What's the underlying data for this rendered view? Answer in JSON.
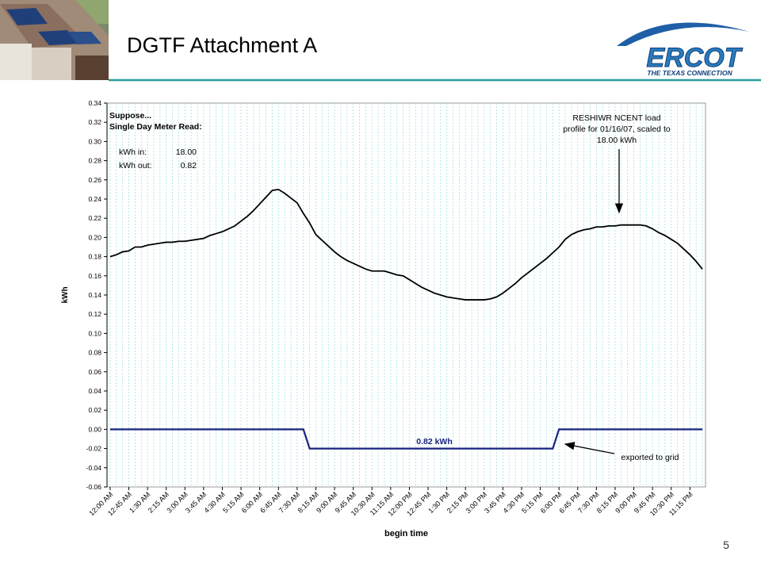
{
  "slide": {
    "title": "DGTF Attachment A",
    "page_number": "5",
    "logo": {
      "name": "ERCOT",
      "tagline": "THE TEXAS CONNECTION"
    }
  },
  "chart_data": {
    "type": "line",
    "xlabel": "begin time",
    "ylabel": "kWh",
    "categories": [
      "12:00 AM",
      null,
      null,
      "12:45 AM",
      null,
      null,
      "1:30 AM",
      null,
      null,
      "2:15 AM",
      null,
      null,
      "3:00 AM",
      null,
      null,
      "3:45 AM",
      null,
      null,
      "4:30 AM",
      null,
      null,
      "5:15 AM",
      null,
      null,
      "6:00 AM",
      null,
      null,
      "6:45 AM",
      null,
      null,
      "7:30 AM",
      null,
      null,
      "8:15 AM",
      null,
      null,
      "9:00 AM",
      null,
      null,
      "9:45 AM",
      null,
      null,
      "10:30 AM",
      null,
      null,
      "11:15 AM",
      null,
      null,
      "12:00 PM",
      null,
      null,
      "12:45 PM",
      null,
      null,
      "1:30 PM",
      null,
      null,
      "2:15 PM",
      null,
      null,
      "3:00 PM",
      null,
      null,
      "3:45 PM",
      null,
      null,
      "4:30 PM",
      null,
      null,
      "5:15 PM",
      null,
      null,
      "6:00 PM",
      null,
      null,
      "6:45 PM",
      null,
      null,
      "7:30 PM",
      null,
      null,
      "8:15 PM",
      null,
      null,
      "9:00 PM",
      null,
      null,
      "9:45 PM",
      null,
      null,
      "10:30 PM",
      null,
      null,
      "11:15 PM",
      null,
      null
    ],
    "series": [
      {
        "color": "#000000",
        "values": [
          0.18,
          0.182,
          0.185,
          0.186,
          0.19,
          0.19,
          0.192,
          0.193,
          0.194,
          0.195,
          0.195,
          0.196,
          0.196,
          0.197,
          0.198,
          0.199,
          0.202,
          0.204,
          0.206,
          0.209,
          0.212,
          0.217,
          0.222,
          0.228,
          0.235,
          0.242,
          0.249,
          0.25,
          0.246,
          0.241,
          0.236,
          0.225,
          0.215,
          0.203,
          0.197,
          0.191,
          0.185,
          0.18,
          0.176,
          0.173,
          0.17,
          0.167,
          0.165,
          0.165,
          0.165,
          0.163,
          0.161,
          0.16,
          0.156,
          0.152,
          0.148,
          0.145,
          0.142,
          0.14,
          0.138,
          0.137,
          0.136,
          0.135,
          0.135,
          0.135,
          0.135,
          0.136,
          0.138,
          0.142,
          0.147,
          0.152,
          0.158,
          0.163,
          0.168,
          0.173,
          0.178,
          0.184,
          0.19,
          0.198,
          0.203,
          0.206,
          0.208,
          0.209,
          0.211,
          0.211,
          0.212,
          0.212,
          0.213,
          0.213,
          0.213,
          0.213,
          0.212,
          0.209,
          0.205,
          0.202,
          0.198,
          0.194,
          0.188,
          0.182,
          0.175,
          0.167
        ]
      },
      {
        "color": "#1a237e",
        "values": [
          0,
          0,
          0,
          0,
          0,
          0,
          0,
          0,
          0,
          0,
          0,
          0,
          0,
          0,
          0,
          0,
          0,
          0,
          0,
          0,
          0,
          0,
          0,
          0,
          0,
          0,
          0,
          0,
          0,
          0,
          0,
          0,
          -0.02,
          -0.02,
          -0.02,
          -0.02,
          -0.02,
          -0.02,
          -0.02,
          -0.02,
          -0.02,
          -0.02,
          -0.02,
          -0.02,
          -0.02,
          -0.02,
          -0.02,
          -0.02,
          -0.02,
          -0.02,
          -0.02,
          -0.02,
          -0.02,
          -0.02,
          -0.02,
          -0.02,
          -0.02,
          -0.02,
          -0.02,
          -0.02,
          -0.02,
          -0.02,
          -0.02,
          -0.02,
          -0.02,
          -0.02,
          -0.02,
          -0.02,
          -0.02,
          -0.02,
          -0.02,
          -0.02,
          0,
          0,
          0,
          0,
          0,
          0,
          0,
          0,
          0,
          0,
          0,
          0,
          0,
          0,
          0,
          0,
          0,
          0,
          0,
          0,
          0,
          0,
          0,
          0
        ]
      }
    ],
    "ylim": [
      -0.06,
      0.34
    ],
    "yticks": [
      {
        "value": 0.34,
        "label": "0.34"
      },
      {
        "value": 0.32,
        "label": "0.32"
      },
      {
        "value": 0.3,
        "label": "0.30"
      },
      {
        "value": 0.28,
        "label": "0.28"
      },
      {
        "value": 0.26,
        "label": "0.26"
      },
      {
        "value": 0.24,
        "label": "0.24"
      },
      {
        "value": 0.22,
        "label": "0.22"
      },
      {
        "value": 0.2,
        "label": "0.20"
      },
      {
        "value": 0.18,
        "label": "0.18"
      },
      {
        "value": 0.16,
        "label": "0.16"
      },
      {
        "value": 0.14,
        "label": "0.14"
      },
      {
        "value": 0.12,
        "label": "0.12"
      },
      {
        "value": 0.1,
        "label": "0.10"
      },
      {
        "value": 0.08,
        "label": "0.08"
      },
      {
        "value": 0.06,
        "label": "0.06"
      },
      {
        "value": 0.04,
        "label": "0.04"
      },
      {
        "value": 0.02,
        "label": "0.02"
      },
      {
        "value": 0,
        "label": "0.00"
      },
      {
        "value": -0.02,
        "label": "-0.02"
      },
      {
        "value": -0.04,
        "label": "-0.04"
      },
      {
        "value": -0.06,
        "label": "-0.06"
      }
    ],
    "grid_x": true,
    "annotations": [
      "Suppose...",
      "Single Day Meter Read:",
      "kWh in:",
      "18.00",
      "kWh out:",
      "0.82",
      "RESHIWR NCENT load",
      "profile for 01/16/07, scaled to",
      "18.00 kWh",
      "0.82 kWh",
      "exported to grid"
    ]
  }
}
